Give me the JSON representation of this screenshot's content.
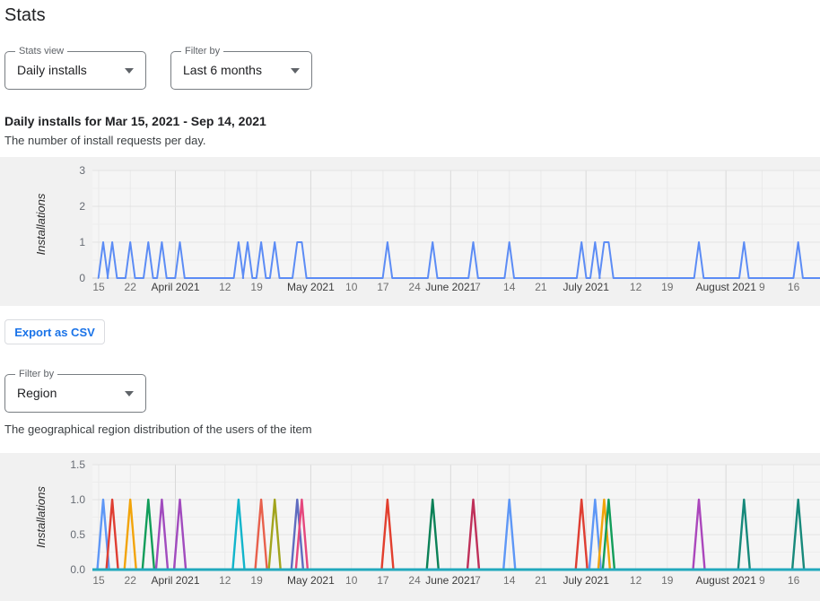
{
  "page": {
    "title": "Stats"
  },
  "controls": {
    "stats_view": {
      "label": "Stats view",
      "value": "Daily installs"
    },
    "filter_by": {
      "label": "Filter by",
      "value": "Last 6 months"
    },
    "region_filter": {
      "label": "Filter by",
      "value": "Region"
    },
    "export_button": "Export as CSV"
  },
  "sections": {
    "daily": {
      "heading": "Daily installs for Mar 15, 2021 - Sep 14, 2021",
      "description": "The number of install requests per day."
    },
    "region": {
      "description": "The geographical region distribution of the users of the item"
    }
  },
  "chart_data": [
    {
      "type": "line",
      "name": "daily-installs",
      "title": "Daily installs for Mar 15, 2021 - Sep 14, 2021",
      "ylabel": "Installations",
      "ylim": [
        0,
        3
      ],
      "yticks": [
        0,
        1,
        2,
        3
      ],
      "ytick_labels": [
        "0",
        "1",
        "2",
        "3"
      ],
      "minor_step": 0.5,
      "grid": true,
      "x_axis": "days since Mar 15, 2021 (axis clipped at right edge ~Aug 22)",
      "xticks": [
        {
          "label": "15",
          "day": 0
        },
        {
          "label": "22",
          "day": 7
        },
        {
          "label": "April 2021",
          "day": 17,
          "month": true
        },
        {
          "label": "12",
          "day": 28
        },
        {
          "label": "19",
          "day": 35
        },
        {
          "label": "May 2021",
          "day": 47,
          "month": true
        },
        {
          "label": "10",
          "day": 56
        },
        {
          "label": "17",
          "day": 63
        },
        {
          "label": "24",
          "day": 70
        },
        {
          "label": "June 2021",
          "day": 78,
          "month": true
        },
        {
          "label": "7",
          "day": 84
        },
        {
          "label": "14",
          "day": 91
        },
        {
          "label": "21",
          "day": 98
        },
        {
          "label": "July 2021",
          "day": 108,
          "month": true
        },
        {
          "label": "12",
          "day": 119
        },
        {
          "label": "19",
          "day": 126
        },
        {
          "label": "August 2021",
          "day": 139,
          "month": true
        },
        {
          "label": "9",
          "day": 147
        },
        {
          "label": "16",
          "day": 154
        }
      ],
      "line_color": "#5c8cf5",
      "spikes": [
        {
          "date": "Mar 16",
          "day": 1,
          "value": 1
        },
        {
          "date": "Mar 18",
          "day": 3,
          "value": 1
        },
        {
          "date": "Mar 22",
          "day": 7,
          "value": 1
        },
        {
          "date": "Mar 26",
          "day": 11,
          "value": 1
        },
        {
          "date": "Mar 29",
          "day": 14,
          "value": 1
        },
        {
          "date": "Apr 2",
          "day": 18,
          "value": 1
        },
        {
          "date": "Apr 15",
          "day": 31,
          "value": 1
        },
        {
          "date": "Apr 17",
          "day": 33,
          "value": 1
        },
        {
          "date": "Apr 20",
          "day": 36,
          "value": 1
        },
        {
          "date": "Apr 23",
          "day": 39,
          "value": 1
        },
        {
          "date": "Apr 28-29",
          "day": 44,
          "end_day": 45,
          "value": 1
        },
        {
          "date": "May 18",
          "day": 64,
          "value": 1
        },
        {
          "date": "May 28",
          "day": 74,
          "value": 1
        },
        {
          "date": "Jun 6",
          "day": 83,
          "value": 1
        },
        {
          "date": "Jun 14",
          "day": 91,
          "value": 1
        },
        {
          "date": "Jun 30",
          "day": 107,
          "value": 1
        },
        {
          "date": "Jul 3",
          "day": 110,
          "value": 1
        },
        {
          "date": "Jul 5-6",
          "day": 112,
          "end_day": 113,
          "value": 1
        },
        {
          "date": "Jul 26",
          "day": 133,
          "value": 1
        },
        {
          "date": "Aug 5",
          "day": 143,
          "value": 1
        },
        {
          "date": "Aug 17",
          "day": 155,
          "value": 1
        }
      ]
    },
    {
      "type": "line",
      "name": "region-distribution",
      "ylabel": "Installations",
      "ylim": [
        0,
        1.5
      ],
      "yticks": [
        0,
        0.5,
        1,
        1.5
      ],
      "ytick_labels": [
        "0.0",
        "0.5",
        "1.0",
        "1.5"
      ],
      "minor_step": 0.25,
      "grid": true,
      "baseline": {
        "value": 0,
        "color": "#22a9bd"
      },
      "xticks": [
        {
          "label": "15",
          "day": 0
        },
        {
          "label": "22",
          "day": 7
        },
        {
          "label": "April 2021",
          "day": 17,
          "month": true
        },
        {
          "label": "12",
          "day": 28
        },
        {
          "label": "19",
          "day": 35
        },
        {
          "label": "May 2021",
          "day": 47,
          "month": true
        },
        {
          "label": "10",
          "day": 56
        },
        {
          "label": "17",
          "day": 63
        },
        {
          "label": "24",
          "day": 70
        },
        {
          "label": "June 2021",
          "day": 78,
          "month": true
        },
        {
          "label": "7",
          "day": 84
        },
        {
          "label": "14",
          "day": 91
        },
        {
          "label": "21",
          "day": 98
        },
        {
          "label": "July 2021",
          "day": 108,
          "month": true
        },
        {
          "label": "12",
          "day": 119
        },
        {
          "label": "19",
          "day": 126
        },
        {
          "label": "August 2021",
          "day": 139,
          "month": true
        },
        {
          "label": "9",
          "day": 147
        },
        {
          "label": "16",
          "day": 154
        }
      ],
      "spikes": [
        {
          "date": "Mar 16",
          "day": 1,
          "value": 1,
          "color": "#5e97f6"
        },
        {
          "date": "Mar 18",
          "day": 3,
          "value": 1,
          "color": "#df3e32"
        },
        {
          "date": "Mar 22",
          "day": 7,
          "value": 1,
          "color": "#f2a40a"
        },
        {
          "date": "Mar 26",
          "day": 11,
          "value": 1,
          "color": "#129d5a"
        },
        {
          "date": "Mar 29",
          "day": 14,
          "value": 1,
          "color": "#a14bbe"
        },
        {
          "date": "Apr 2",
          "day": 18,
          "value": 1,
          "color": "#a14bbe"
        },
        {
          "date": "Apr 15",
          "day": 31,
          "value": 1,
          "color": "#12b5cb"
        },
        {
          "date": "Apr 20",
          "day": 36,
          "value": 1,
          "color": "#e8604c"
        },
        {
          "date": "Apr 23",
          "day": 39,
          "value": 1,
          "color": "#a2a41d"
        },
        {
          "date": "Apr 28",
          "day": 44,
          "value": 1,
          "color": "#5f6cc0"
        },
        {
          "date": "Apr 29",
          "day": 45,
          "value": 1,
          "color": "#e5477d"
        },
        {
          "date": "May 18",
          "day": 64,
          "value": 1,
          "color": "#e23f2e"
        },
        {
          "date": "May 28",
          "day": 74,
          "value": 1,
          "color": "#0b8157"
        },
        {
          "date": "Jun 6",
          "day": 83,
          "value": 1,
          "color": "#bf3059"
        },
        {
          "date": "Jun 14",
          "day": 91,
          "value": 1,
          "color": "#5e97f6"
        },
        {
          "date": "Jun 30",
          "day": 107,
          "value": 1,
          "color": "#df3e32"
        },
        {
          "date": "Jul 3",
          "day": 110,
          "value": 1,
          "color": "#5e97f6"
        },
        {
          "date": "Jul 5",
          "day": 112,
          "value": 1,
          "color": "#f2a40a"
        },
        {
          "date": "Jul 6",
          "day": 113,
          "value": 1,
          "color": "#129d5a"
        },
        {
          "date": "Jul 26",
          "day": 133,
          "value": 1,
          "color": "#ab47bc"
        },
        {
          "date": "Aug 5",
          "day": 143,
          "value": 1,
          "color": "#17897b"
        },
        {
          "date": "Aug 17",
          "day": 155,
          "value": 1,
          "color": "#17897b"
        }
      ]
    }
  ]
}
